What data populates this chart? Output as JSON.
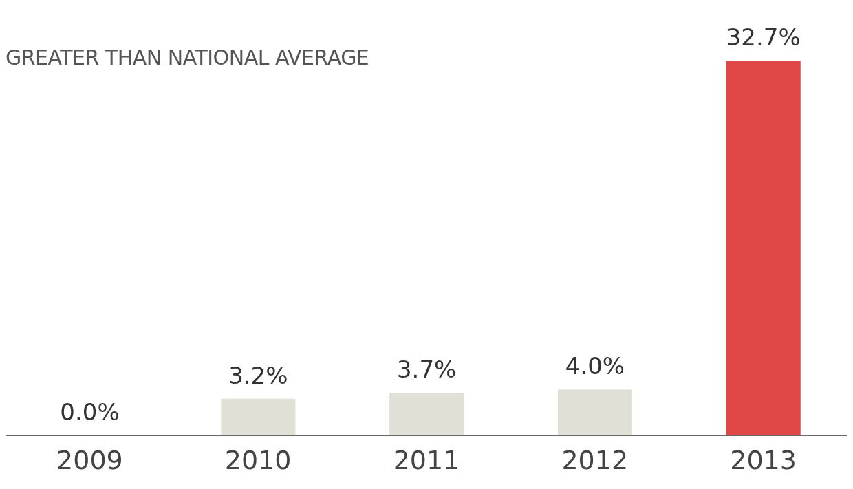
{
  "chart_data": {
    "type": "bar",
    "subtitle": "GREATER THAN NATIONAL AVERAGE",
    "categories": [
      "2009",
      "2010",
      "2011",
      "2012",
      "2013"
    ],
    "values": [
      0.0,
      3.2,
      3.7,
      4.0,
      32.7
    ],
    "colors": [
      null,
      "#e0e0d6",
      "#e0e0d6",
      "#e0e0d6",
      "#e04848"
    ],
    "value_labels": [
      "0.0%",
      "3.2%",
      "3.7%",
      "4.0%",
      "32.7%"
    ],
    "grid": false,
    "legend": false
  }
}
